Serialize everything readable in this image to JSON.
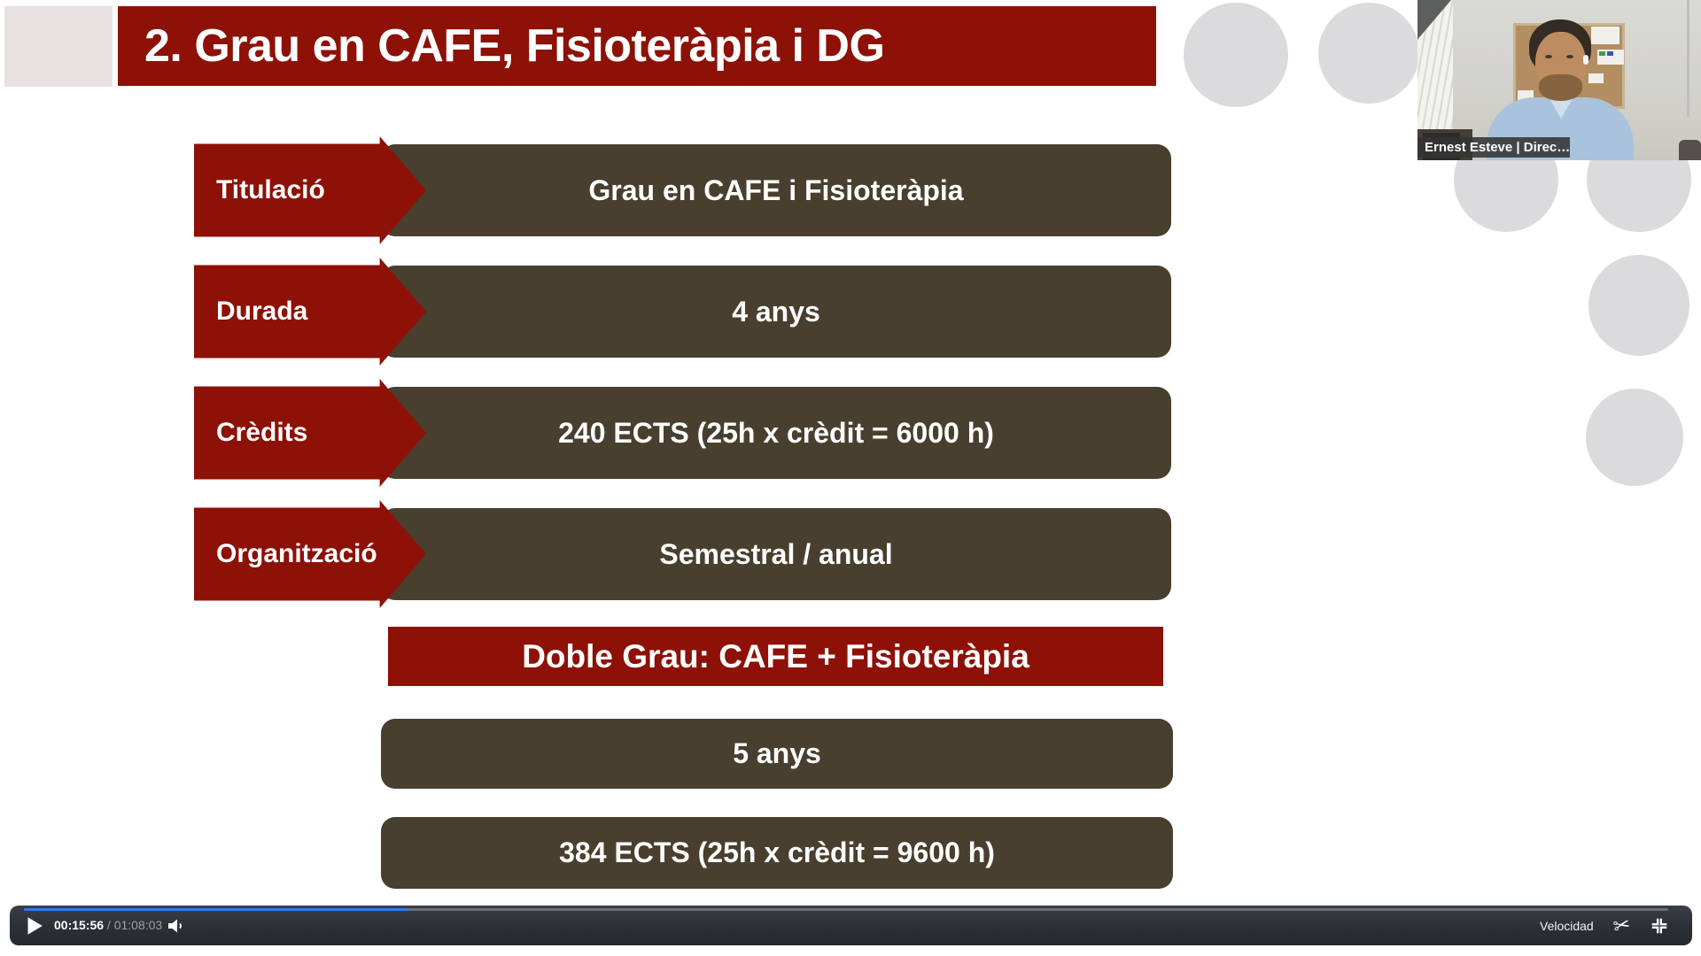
{
  "slide": {
    "title": "2. Grau en CAFE, Fisioteràpia i DG",
    "rows": [
      {
        "label": "Titulació",
        "value": "Grau en CAFE i Fisioteràpia"
      },
      {
        "label": "Durada",
        "value": "4 anys"
      },
      {
        "label": "Crèdits",
        "value": "240 ECTS (25h x crèdit = 6000 h)"
      },
      {
        "label": "Organització",
        "value": "Semestral / anual"
      }
    ],
    "double_degree": {
      "title": "Doble Grau: CAFE + Fisioteràpia",
      "rows": [
        "5 anys",
        "384 ECTS (25h x crèdit = 9600 h)"
      ]
    },
    "colors": {
      "accent_red": "#8d1107",
      "bar_brown": "#483f2f",
      "circle_gray": "#dbdbdd",
      "pink_square": "#e9e0e2"
    }
  },
  "webcam": {
    "name_label": "Ernest Esteve | Direc…"
  },
  "player": {
    "current_time": "00:15:56",
    "separator": " / ",
    "duration": "01:08:03",
    "speed_label": "Velocidad",
    "progress_percent": 23.4,
    "icons": {
      "trim_glyph": "✂"
    },
    "colors": {
      "progress_blue": "#2e7bf7",
      "bar_background": "#2c2f36"
    }
  }
}
